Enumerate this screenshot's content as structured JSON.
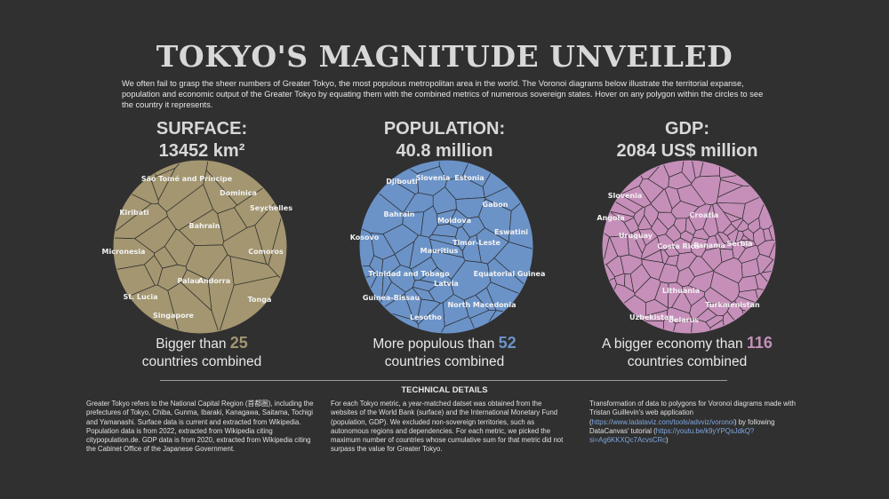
{
  "title": "TOKYO'S MAGNITUDE UNVEILED",
  "intro": "We often fail to grasp the sheer numbers of Greater Tokyo, the most populous metropolitan area in the world. The Voronoi diagrams below illustrate the territorial expanse, population and economic output of the Greater Tokyo by equating them with the combined metrics of numerous sovereign states. Hover on any polygon within the circles to see the country it represents.",
  "colors": {
    "background": "#303030",
    "surface": "#a39670",
    "population": "#6b93c8",
    "gdp": "#c58fb9",
    "polygon_stroke": "#2d2d2d"
  },
  "panels": [
    {
      "id": "surface",
      "heading": "SURFACE:",
      "value": "13452 km²",
      "prefix": "Bigger than",
      "count": "25",
      "suffix": "countries combined",
      "countries": [
        "São Tomé and Príncipe",
        "Dominica",
        "Kiribati",
        "Seychelles",
        "Bahrain",
        "Micronesia",
        "Comoros",
        "Palau",
        "Andorra",
        "St. Lucia",
        "Tonga",
        "Singapore"
      ]
    },
    {
      "id": "population",
      "heading": "POPULATION:",
      "value": "40.8 million",
      "prefix": "More populous than",
      "count": "52",
      "suffix": "countries combined",
      "countries": [
        "Djibouti",
        "Slovenia",
        "Estonia",
        "Gabon",
        "Bahrain",
        "Moldova",
        "Eswatini",
        "Kosovo",
        "Timor-Leste",
        "Mauritius",
        "Trinidad and Tobago",
        "Equatorial Guinea",
        "Latvia",
        "Guinea-Bissau",
        "North Macedonia",
        "Lesotho"
      ]
    },
    {
      "id": "gdp",
      "heading": "GDP:",
      "value": "2084 US$ million",
      "prefix": "A bigger economy than",
      "count": "116",
      "suffix": "countries combined",
      "countries": [
        "Slovenia",
        "Croatia",
        "Angola",
        "Uruguay",
        "Costa Rica",
        "Panama",
        "Serbia",
        "Lithuania",
        "Turkmenistan",
        "Uzbekistan",
        "Belarus"
      ]
    }
  ],
  "technical": {
    "heading": "TECHNICAL DETAILS",
    "col1": "Greater Tokyo refers to the National Capital Region (首都圏), including the prefectures of Tokyo, Chiba, Gunma, Ibaraki, Kanagawa, Saitama, Tochigi and Yamanashi. Surface data is current and extracted from Wikipedia. Population data is from 2022, extracted from Wikipedia citing citypopulation.de. GDP data is from 2020, extracted from Wikipedia citing the Cabinet Office of the Japanese Government.",
    "col2": "For each Tokyo metric, a year-matched datset was obtained from the websites of the World Bank (surface) and the International Monetary Fund (population, GDP). We excluded non-sovereign territories, such as autonomous regions and dependencies. For each metric, we picked the maximum number of countries whose cumulative sum for that metric did not surpass the value for Greater Tokyo.",
    "col3_text1": "Transformation of data to polygons for Voronoi diagrams made with Tristan Guillevin's web application (",
    "col3_link1": "https://www.ladataviz.com/tools/advviz/voronoi",
    "col3_text2": ") by following DataCanvas' tutorial  (",
    "col3_link2": "https://youtu.be/k9yYPQsJdkQ?si=Ag6KKXQc7AcvsCRc",
    "col3_text3": ")"
  }
}
